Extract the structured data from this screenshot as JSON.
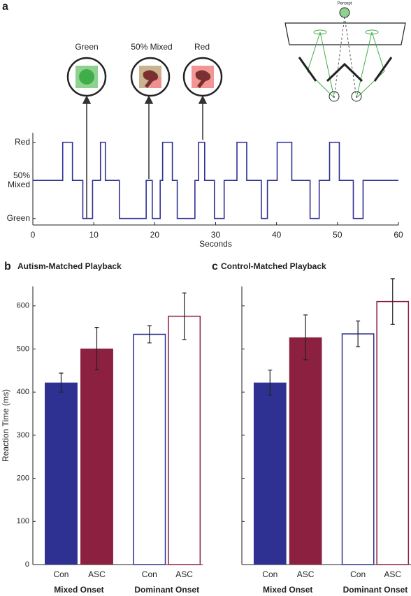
{
  "chart_data": [
    {
      "type": "line",
      "panel": "a",
      "step": "post",
      "color": "#2e3192",
      "x": [
        0,
        4.9,
        6.5,
        8.2,
        9.8,
        11.1,
        11.9,
        14.2,
        18.6,
        19.6,
        20.9,
        21.3,
        22.9,
        23.7,
        26.6,
        27.2,
        28.2,
        29.8,
        31.4,
        33.5,
        35.1,
        37.5,
        38.5,
        40.1,
        42.5,
        45.5,
        47,
        48.7,
        50.3,
        52.6,
        54.2,
        60
      ],
      "values": [
        1,
        2,
        1,
        0,
        1,
        2,
        1,
        0,
        1,
        0,
        1,
        2,
        1,
        0,
        1,
        2,
        1,
        0,
        1,
        2,
        1,
        0,
        1,
        2,
        1,
        0,
        1,
        2,
        1,
        0,
        1,
        1
      ],
      "xlim": [
        0,
        60
      ],
      "xticks": [
        0,
        10,
        20,
        30,
        40,
        50,
        60
      ],
      "xlabel": "Seconds",
      "ylim": [
        -0.17,
        2.25
      ],
      "yticks": [
        {
          "value": 0,
          "label": "Green"
        },
        {
          "value": 1,
          "label": "50% Mixed"
        },
        {
          "value": 2,
          "label": "Red"
        }
      ],
      "annotations": [
        "Green",
        "50% Mixed",
        "Red"
      ],
      "diagram_label": "Percept"
    },
    {
      "type": "bar",
      "panel": "b",
      "title": "Autism-Matched Playback",
      "ylabel": "Reaction Time (ms)",
      "categories": [
        "Con",
        "ASC",
        "Con",
        "ASC"
      ],
      "groups": [
        "Mixed Onset",
        "Dominant Onset"
      ],
      "values": [
        422,
        501,
        534,
        576
      ],
      "errors": [
        22,
        49,
        20,
        54
      ],
      "colors": [
        "#2e3192",
        "#8b2040",
        "#2e3192",
        "#8b2040"
      ],
      "filled": [
        true,
        true,
        false,
        false
      ],
      "ylim": [
        0,
        645
      ],
      "yticks": [
        0,
        100,
        200,
        300,
        400,
        500,
        600
      ],
      "tick_labels": true
    },
    {
      "type": "bar",
      "panel": "c",
      "title": "Control-Matched Playback",
      "categories": [
        "Con",
        "ASC",
        "Con",
        "ASC"
      ],
      "groups": [
        "Mixed Onset",
        "Dominant Onset"
      ],
      "values": [
        422,
        527,
        535,
        610
      ],
      "errors": [
        29,
        52,
        30,
        53
      ],
      "colors": [
        "#2e3192",
        "#8b2040",
        "#2e3192",
        "#8b2040"
      ],
      "filled": [
        true,
        true,
        false,
        false
      ],
      "ylim": [
        0,
        645
      ],
      "yticks": [
        0,
        100,
        200,
        300,
        400,
        500,
        600
      ],
      "tick_labels": false
    }
  ]
}
